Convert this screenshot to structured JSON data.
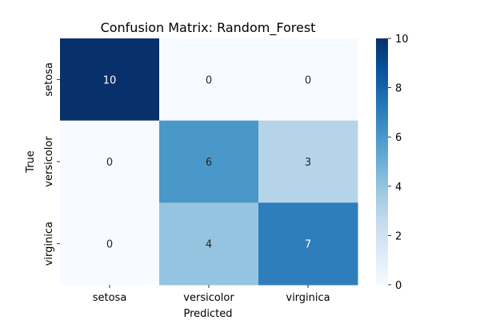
{
  "chart_data": {
    "type": "heatmap",
    "title": "Confusion Matrix: Random_Forest",
    "xlabel": "Predicted",
    "ylabel": "True",
    "x_categories": [
      "setosa",
      "versicolor",
      "virginica"
    ],
    "y_categories": [
      "setosa",
      "versicolor",
      "virginica"
    ],
    "values": [
      [
        10,
        0,
        0
      ],
      [
        0,
        6,
        3
      ],
      [
        0,
        4,
        7
      ]
    ],
    "colorbar": {
      "min": 0,
      "max": 10,
      "ticks": [
        0,
        2,
        4,
        6,
        8,
        10
      ],
      "colormap": "Blues"
    }
  }
}
